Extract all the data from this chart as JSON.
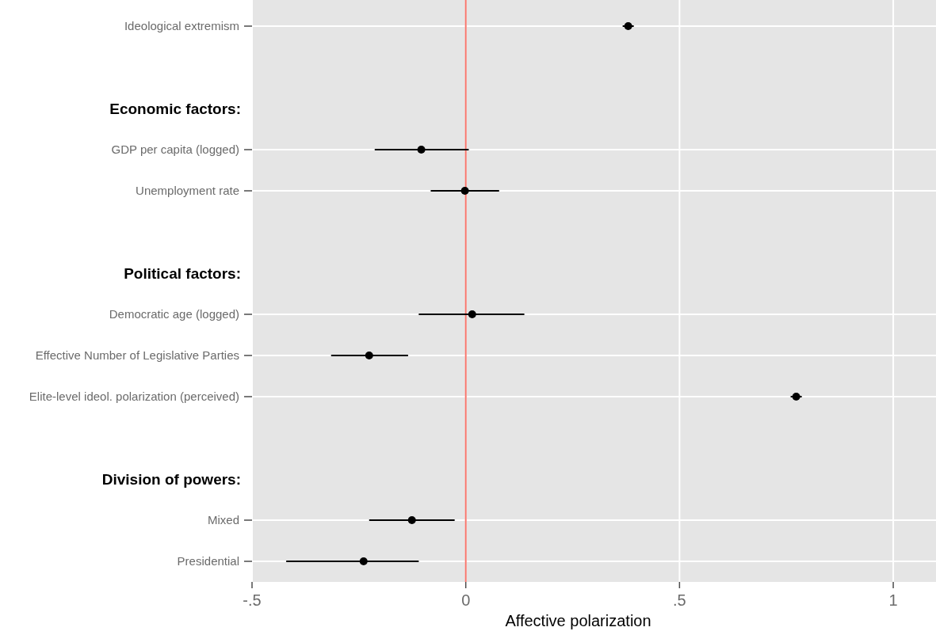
{
  "chart_data": {
    "type": "scatter",
    "orientation": "horizontal",
    "xlabel": "Affective polarization",
    "categories": [
      "Ideological extremism",
      null,
      null,
      "GDP per capita (logged)",
      "Unemployment rate",
      null,
      null,
      "Democratic age (logged)",
      "Effective Number of Legislative Parties",
      "Elite-level ideol. polarization (perceived)",
      null,
      null,
      "Mixed",
      "Presidential"
    ],
    "annotations": [
      "Economic factors:",
      "Political factors:",
      "Division of powers:"
    ],
    "series": [
      {
        "color": "#000000",
        "values": [
          0.38,
          null,
          null,
          -0.104,
          -0.002,
          null,
          null,
          0.015,
          -0.226,
          0.773,
          null,
          null,
          -0.126,
          -0.239
        ],
        "errors": [
          [
            0.367,
            0.393
          ],
          null,
          null,
          [
            -0.213,
            0.007
          ],
          [
            -0.082,
            0.078
          ],
          null,
          null,
          [
            -0.11,
            0.137
          ],
          [
            -0.315,
            -0.135
          ],
          [
            0.76,
            0.786
          ],
          null,
          null,
          [
            -0.226,
            -0.026
          ],
          [
            -0.42,
            -0.11
          ]
        ]
      }
    ],
    "xlim": [
      -0.5,
      1.1
    ],
    "xticks": [
      {
        "value": -0.5,
        "label": "-.5"
      },
      0,
      {
        "value": 0.5,
        "label": ".5"
      },
      1
    ],
    "ref_lines": [
      {
        "axis": "x",
        "value": 0,
        "color": "#f8766d"
      }
    ],
    "grid": true,
    "marker": "circle"
  }
}
